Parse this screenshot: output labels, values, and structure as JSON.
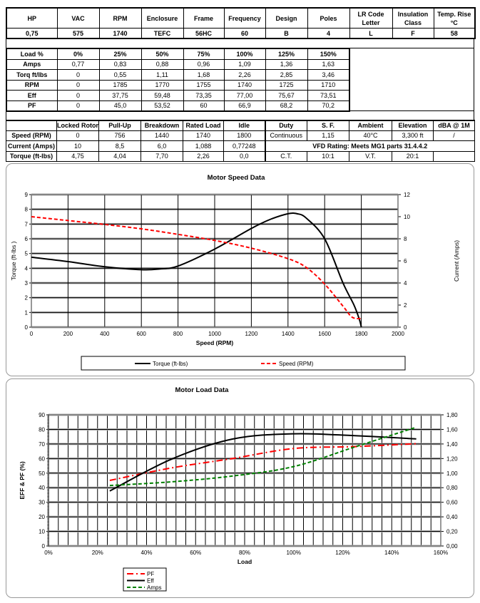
{
  "specs": {
    "headers": [
      "HP",
      "VAC",
      "RPM",
      "Enclosure",
      "Frame",
      "Frequency",
      "Design",
      "Poles",
      "LR Code Letter",
      "Insulation Class",
      "Temp. Rise °C"
    ],
    "values": [
      "0,75",
      "575",
      "1740",
      "TEFC",
      "56HC",
      "60",
      "B",
      "4",
      "L",
      "F",
      "58"
    ]
  },
  "load_table": {
    "rows": [
      [
        "Load %",
        "0%",
        "25%",
        "50%",
        "75%",
        "100%",
        "125%",
        "150%"
      ],
      [
        "Amps",
        "0,77",
        "0,83",
        "0,88",
        "0,96",
        "1,09",
        "1,36",
        "1,63"
      ],
      [
        "Torq ft/lbs",
        "0",
        "0,55",
        "1,11",
        "1,68",
        "2,26",
        "2,85",
        "3,46"
      ],
      [
        "RPM",
        "0",
        "1785",
        "1770",
        "1755",
        "1740",
        "1725",
        "1710"
      ],
      [
        "Eff",
        "0",
        "37,75",
        "59,48",
        "73,35",
        "77,00",
        "75,67",
        "73,51"
      ],
      [
        "PF",
        "0",
        "45,0",
        "53,52",
        "60",
        "66,9",
        "68,2",
        "70,2"
      ]
    ]
  },
  "perf_table": {
    "headers": [
      "",
      "Locked Rotor",
      "Pull-Up",
      "Breakdown",
      "Rated Load",
      "Idle",
      "Duty",
      "S. F.",
      "Ambient",
      "Elevation",
      "dBA @ 1M"
    ],
    "speed": [
      "Speed (RPM)",
      "0",
      "756",
      "1440",
      "1740",
      "1800",
      "Continuous",
      "1,15",
      "40°C",
      "3,300 ft",
      "/"
    ],
    "current": [
      "Current (Amps)",
      "10",
      "8,5",
      "6,0",
      "1,088",
      "0,77248"
    ],
    "vfd": "VFD Rating: Meets MG1 parts 31.4.4.2",
    "torque": [
      "Torque (ft-lbs)",
      "4,75",
      "4,04",
      "7,70",
      "2,26",
      "0,0",
      "C.T.",
      "10:1",
      "V.T.",
      "20:1",
      ""
    ]
  },
  "chart_data": [
    {
      "type": "line",
      "title": "Motor Speed Data",
      "xlabel": "Speed (RPM)",
      "ylabel": "Torque (ft-lbs )",
      "y2label": "Current (Amps)",
      "xlim": [
        0,
        2000
      ],
      "ylim": [
        0,
        9
      ],
      "y2lim": [
        0,
        12
      ],
      "xticks": [
        "0",
        "200",
        "400",
        "600",
        "800",
        "1000",
        "1200",
        "1400",
        "1600",
        "1800",
        "2000"
      ],
      "yticks": [
        "0",
        "1",
        "2",
        "3",
        "4",
        "5",
        "6",
        "7",
        "8",
        "9"
      ],
      "y2ticks": [
        "0",
        "2",
        "4",
        "6",
        "8",
        "10",
        "12"
      ],
      "grid": true,
      "legend": "bottom",
      "series": [
        {
          "name": "Torque (ft-lbs)",
          "axis": "left",
          "color": "#000000",
          "style": "solid",
          "x": [
            0,
            200,
            400,
            600,
            700,
            800,
            1000,
            1200,
            1300,
            1400,
            1450,
            1500,
            1600,
            1700,
            1760,
            1790,
            1800
          ],
          "y": [
            4.75,
            4.45,
            4.1,
            3.9,
            3.95,
            4.15,
            5.3,
            6.7,
            7.3,
            7.7,
            7.7,
            7.4,
            6.0,
            3.0,
            1.5,
            0.5,
            0
          ]
        },
        {
          "name": "Speed (RPM)",
          "axis": "right",
          "color": "#ff0000",
          "style": "dashed",
          "x": [
            0,
            200,
            400,
            600,
            800,
            1000,
            1200,
            1400,
            1500,
            1600,
            1700,
            1750,
            1800
          ],
          "y": [
            10,
            9.65,
            9.3,
            8.9,
            8.4,
            7.85,
            7.15,
            6.2,
            5.4,
            3.9,
            1.9,
            0.9,
            0.77
          ]
        }
      ]
    },
    {
      "type": "line",
      "title": "Motor Load Data",
      "xlabel": "Load",
      "ylabel": "EFF & PF (%)",
      "xlim": [
        0,
        160
      ],
      "ylim": [
        0,
        90
      ],
      "y2lim": [
        0,
        1.8
      ],
      "xticks": [
        "0%",
        "20%",
        "40%",
        "60%",
        "80%",
        "100%",
        "120%",
        "140%",
        "160%"
      ],
      "yticks": [
        "0",
        "10",
        "20",
        "30",
        "40",
        "50",
        "60",
        "70",
        "80",
        "90"
      ],
      "y2ticks": [
        "0,00",
        "0,20",
        "0,40",
        "0,60",
        "0,80",
        "1,00",
        "1,20",
        "1,40",
        "1,60",
        "1,80"
      ],
      "grid": true,
      "legend": "bottom-left",
      "series": [
        {
          "name": "PF",
          "axis": "left",
          "color": "#ff0000",
          "style": "dashdot",
          "x": [
            25,
            50,
            75,
            100,
            125,
            150
          ],
          "y": [
            45,
            53.52,
            60,
            66.9,
            68.2,
            70.2
          ]
        },
        {
          "name": "Eff",
          "axis": "left",
          "color": "#000000",
          "style": "solid",
          "x": [
            25,
            50,
            75,
            100,
            125,
            150
          ],
          "y": [
            37.75,
            59.48,
            73.35,
            77,
            75.67,
            73.51
          ]
        },
        {
          "name": "Amps",
          "axis": "right",
          "color": "#008000",
          "style": "dashed",
          "x": [
            25,
            50,
            75,
            100,
            125,
            150
          ],
          "y": [
            0.83,
            0.88,
            0.96,
            1.09,
            1.36,
            1.63
          ]
        }
      ]
    }
  ]
}
